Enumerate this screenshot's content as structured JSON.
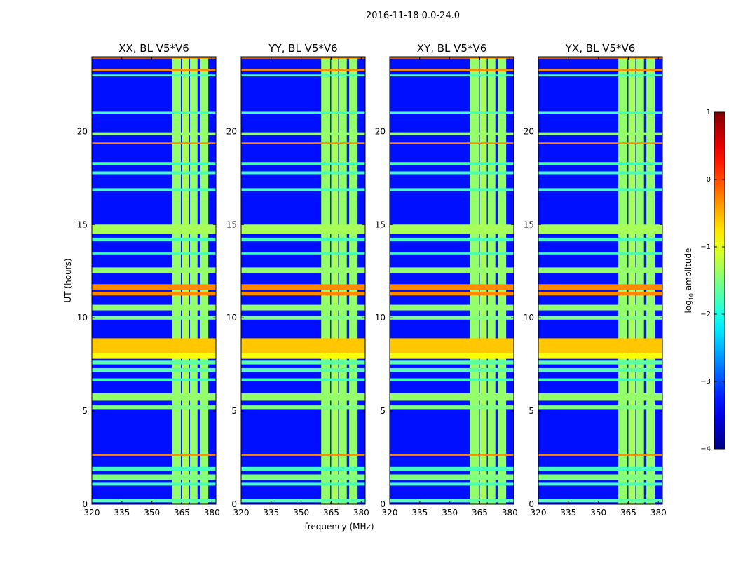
{
  "figure": {
    "suptitle": "2016-11-18 0.0-24.0",
    "xlabel": "frequency (MHz)",
    "ylabel": "UT (hours)",
    "colorbar_label_prefix": "log",
    "colorbar_label_sub": "10",
    "colorbar_label_suffix": " amplitude"
  },
  "chart_data": {
    "type": "heatmap",
    "colormap": "jet",
    "xlim": [
      320,
      382
    ],
    "ylim": [
      0,
      24
    ],
    "xticks": [
      320,
      335,
      350,
      365,
      380
    ],
    "yticks": [
      0,
      5,
      10,
      15,
      20
    ],
    "colorbar": {
      "min": -4,
      "max": 1,
      "ticks": [
        1,
        0,
        -1,
        -2,
        -3,
        -4
      ],
      "tick_labels": [
        "1",
        "0",
        "−1",
        "−2",
        "−3",
        "−4"
      ]
    },
    "panels": [
      {
        "title": "XX, BL V5*V6",
        "pol": "XX"
      },
      {
        "title": "YY, BL V5*V6",
        "pol": "YY"
      },
      {
        "title": "XY, BL V5*V6",
        "pol": "XY"
      },
      {
        "title": "YX, BL V5*V6",
        "pol": "YX"
      }
    ],
    "background_log_amplitude": -3.3,
    "rfi_frequency_bands_mhz": [
      {
        "from": 360.0,
        "to": 364.5,
        "log_amplitude": -1.4
      },
      {
        "from": 365.0,
        "to": 368.5,
        "log_amplitude": -1.3
      },
      {
        "from": 369.0,
        "to": 372.8,
        "log_amplitude": -1.4
      },
      {
        "from": 374.0,
        "to": 378.2,
        "log_amplitude": -1.4
      }
    ],
    "rfi_time_rows_ut": [
      {
        "from": 0.1,
        "to": 0.3,
        "log_amplitude": -1.7
      },
      {
        "from": 1.0,
        "to": 1.15,
        "log_amplitude": -1.8
      },
      {
        "from": 1.3,
        "to": 1.6,
        "log_amplitude": -1.5
      },
      {
        "from": 1.8,
        "to": 2.0,
        "log_amplitude": -1.8
      },
      {
        "from": 2.6,
        "to": 2.7,
        "log_amplitude": -0.3
      },
      {
        "from": 5.1,
        "to": 5.3,
        "log_amplitude": -1.5
      },
      {
        "from": 5.55,
        "to": 5.95,
        "log_amplitude": -1.4
      },
      {
        "from": 6.6,
        "to": 6.75,
        "log_amplitude": -1.8
      },
      {
        "from": 7.1,
        "to": 7.3,
        "log_amplitude": -1.7
      },
      {
        "from": 7.5,
        "to": 7.7,
        "log_amplitude": -1.7
      },
      {
        "from": 7.8,
        "to": 8.1,
        "log_amplitude": -0.9
      },
      {
        "from": 8.1,
        "to": 8.9,
        "log_amplitude": -0.6
      },
      {
        "from": 9.9,
        "to": 10.1,
        "log_amplitude": -1.5
      },
      {
        "from": 10.4,
        "to": 10.7,
        "log_amplitude": -1.4
      },
      {
        "from": 11.2,
        "to": 11.4,
        "log_amplitude": -0.3
      },
      {
        "from": 11.5,
        "to": 11.8,
        "log_amplitude": -0.3
      },
      {
        "from": 12.4,
        "to": 12.7,
        "log_amplitude": -1.4
      },
      {
        "from": 13.4,
        "to": 13.5,
        "log_amplitude": -1.8
      },
      {
        "from": 14.1,
        "to": 14.3,
        "log_amplitude": -1.8
      },
      {
        "from": 14.5,
        "to": 15.0,
        "log_amplitude": -1.3
      },
      {
        "from": 16.8,
        "to": 16.95,
        "log_amplitude": -1.8
      },
      {
        "from": 17.7,
        "to": 17.85,
        "log_amplitude": -1.8
      },
      {
        "from": 18.2,
        "to": 18.35,
        "log_amplitude": -1.8
      },
      {
        "from": 19.3,
        "to": 19.4,
        "log_amplitude": -0.3
      },
      {
        "from": 19.8,
        "to": 19.95,
        "log_amplitude": -1.4
      },
      {
        "from": 20.95,
        "to": 21.05,
        "log_amplitude": -1.8
      },
      {
        "from": 22.95,
        "to": 23.05,
        "log_amplitude": -1.8
      },
      {
        "from": 23.25,
        "to": 23.35,
        "log_amplitude": -0.3
      },
      {
        "from": 23.9,
        "to": 24.0,
        "log_amplitude": -0.3
      }
    ]
  }
}
